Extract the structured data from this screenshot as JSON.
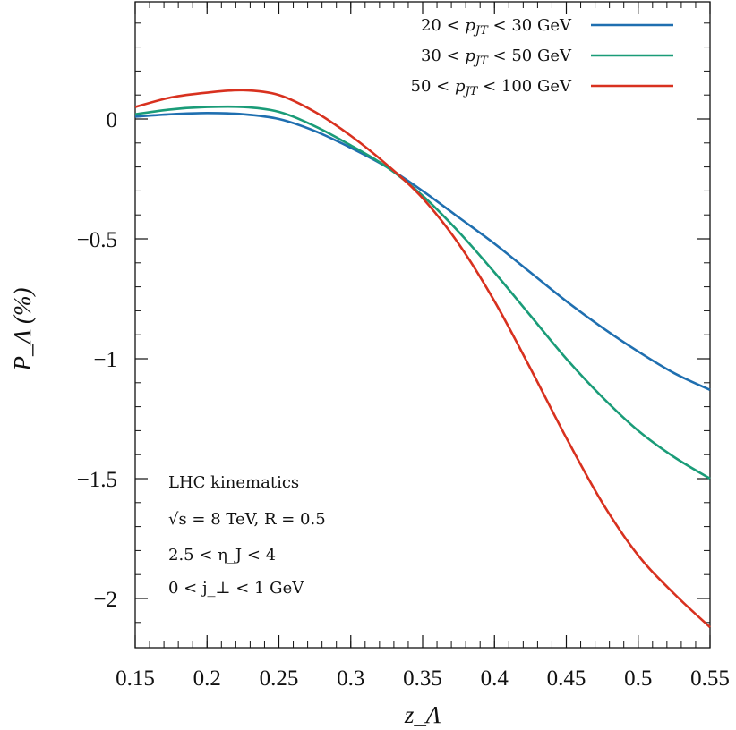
{
  "chart_data": {
    "type": "line",
    "xlabel": "z_Λ",
    "ylabel": "P_Λ (%)",
    "xlim": [
      0.15,
      0.55
    ],
    "ylim": [
      -2.2,
      0.48
    ],
    "x_ticks": [
      0.15,
      0.2,
      0.25,
      0.3,
      0.35,
      0.4,
      0.45,
      0.5,
      0.55
    ],
    "x_tick_labels": [
      "0.15",
      "0.2",
      "0.25",
      "0.3",
      "0.35",
      "0.4",
      "0.45",
      "0.5",
      "0.55"
    ],
    "y_ticks": [
      0,
      -0.5,
      -1,
      -1.5,
      -2
    ],
    "y_tick_labels": [
      "0",
      "−0.5",
      "−1",
      "−1.5",
      "−2"
    ],
    "grid": false,
    "legend_position": "top-right",
    "series": [
      {
        "name": "20 < p_JT < 30 GeV",
        "label_parts": [
          "20 < ",
          "p",
          "JT",
          " < 30 GeV"
        ],
        "color": "#1f6fb0",
        "x": [
          0.15,
          0.175,
          0.2,
          0.225,
          0.25,
          0.275,
          0.3,
          0.325,
          0.35,
          0.375,
          0.4,
          0.425,
          0.45,
          0.475,
          0.5,
          0.525,
          0.55
        ],
        "y": [
          0.01,
          0.02,
          0.025,
          0.02,
          0.0,
          -0.05,
          -0.12,
          -0.2,
          -0.3,
          -0.41,
          -0.52,
          -0.64,
          -0.76,
          -0.87,
          -0.97,
          -1.06,
          -1.13
        ]
      },
      {
        "name": "30 < p_JT < 50 GeV",
        "label_parts": [
          "30 < ",
          "p",
          "JT",
          " < 50 GeV"
        ],
        "color": "#1a9c78",
        "x": [
          0.15,
          0.175,
          0.2,
          0.225,
          0.25,
          0.275,
          0.3,
          0.325,
          0.35,
          0.375,
          0.4,
          0.425,
          0.45,
          0.475,
          0.5,
          0.525,
          0.55
        ],
        "y": [
          0.02,
          0.04,
          0.05,
          0.05,
          0.03,
          -0.03,
          -0.11,
          -0.2,
          -0.32,
          -0.47,
          -0.64,
          -0.82,
          -1.0,
          -1.16,
          -1.3,
          -1.41,
          -1.5
        ]
      },
      {
        "name": "50 < p_JT < 100 GeV",
        "label_parts": [
          "50 < ",
          "p",
          "JT",
          " < 100 GeV"
        ],
        "color": "#d8311f",
        "x": [
          0.15,
          0.175,
          0.2,
          0.225,
          0.25,
          0.275,
          0.3,
          0.325,
          0.35,
          0.375,
          0.4,
          0.425,
          0.45,
          0.475,
          0.5,
          0.525,
          0.55
        ],
        "y": [
          0.05,
          0.09,
          0.11,
          0.12,
          0.1,
          0.03,
          -0.07,
          -0.19,
          -0.33,
          -0.52,
          -0.76,
          -1.04,
          -1.33,
          -1.6,
          -1.82,
          -1.98,
          -2.12
        ]
      }
    ],
    "annotations": [
      "LHC kinematics",
      "√s = 8 TeV,  R = 0.5",
      "2.5 < η_J < 4",
      "0 < j_⊥ < 1 GeV"
    ]
  }
}
